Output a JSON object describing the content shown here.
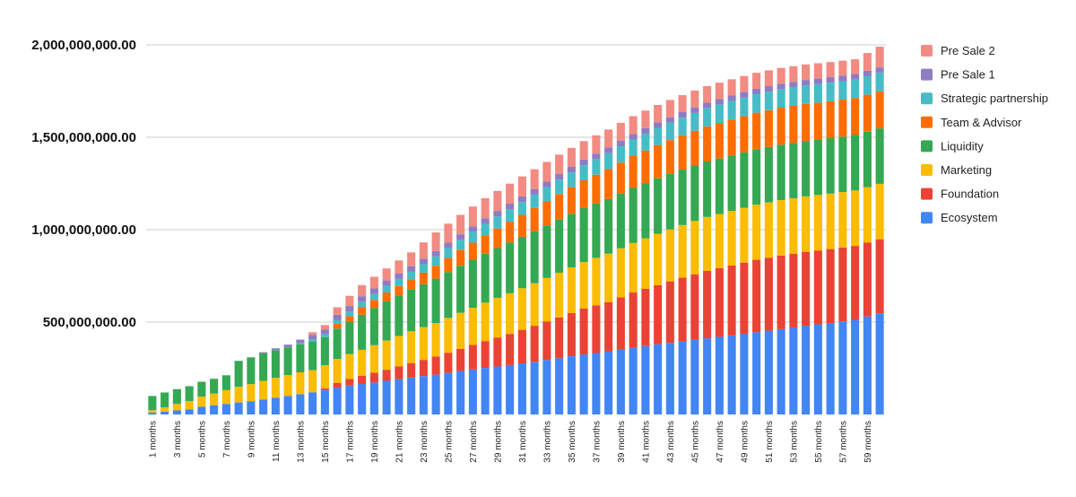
{
  "chart_data": {
    "type": "stacked-bar",
    "title": "",
    "xlabel": "",
    "ylabel": "",
    "ylim": [
      0,
      2000000000
    ],
    "yticks": [
      500000000,
      1000000000,
      1500000000,
      2000000000
    ],
    "ytick_labels": [
      "500,000,000.00",
      "1,000,000,000.00",
      "1,500,000,000.00",
      "2,000,000,000.00"
    ],
    "x_count": 60,
    "x_label_suffix": " months",
    "x_label_every": 2,
    "series": [
      {
        "name": "Ecosystem",
        "color": "#4285f4",
        "anchors": [
          [
            1,
            10000000
          ],
          [
            2,
            15000000
          ],
          [
            3,
            22000000
          ],
          [
            4,
            28000000
          ],
          [
            5,
            42000000
          ],
          [
            6,
            50000000
          ],
          [
            7,
            57000000
          ],
          [
            8,
            65000000
          ],
          [
            9,
            72000000
          ],
          [
            10,
            80000000
          ],
          [
            11,
            90000000
          ],
          [
            12,
            100000000
          ],
          [
            13,
            110000000
          ],
          [
            14,
            120000000
          ],
          [
            15,
            132000000
          ],
          [
            16,
            145000000
          ],
          [
            17,
            157000000
          ],
          [
            18,
            165000000
          ],
          [
            20,
            182000000
          ],
          [
            22,
            200000000
          ],
          [
            24,
            215000000
          ],
          [
            26,
            235000000
          ],
          [
            28,
            252000000
          ],
          [
            30,
            268000000
          ],
          [
            32,
            285000000
          ],
          [
            34,
            305000000
          ],
          [
            36,
            325000000
          ],
          [
            38,
            340000000
          ],
          [
            40,
            360000000
          ],
          [
            42,
            380000000
          ],
          [
            44,
            395000000
          ],
          [
            46,
            412000000
          ],
          [
            48,
            428000000
          ],
          [
            50,
            445000000
          ],
          [
            52,
            462000000
          ],
          [
            54,
            480000000
          ],
          [
            56,
            495000000
          ],
          [
            58,
            512000000
          ],
          [
            60,
            548000000
          ]
        ]
      },
      {
        "name": "Foundation",
        "color": "#ea4335",
        "anchors": [
          [
            1,
            0
          ],
          [
            14,
            0
          ],
          [
            15,
            10000000
          ],
          [
            16,
            25000000
          ],
          [
            17,
            35000000
          ],
          [
            18,
            45000000
          ],
          [
            20,
            60000000
          ],
          [
            22,
            78000000
          ],
          [
            24,
            98000000
          ],
          [
            26,
            120000000
          ],
          [
            28,
            145000000
          ],
          [
            30,
            168000000
          ],
          [
            32,
            195000000
          ],
          [
            34,
            220000000
          ],
          [
            36,
            248000000
          ],
          [
            38,
            268000000
          ],
          [
            40,
            300000000
          ],
          [
            42,
            320000000
          ],
          [
            44,
            345000000
          ],
          [
            46,
            365000000
          ],
          [
            48,
            378000000
          ],
          [
            50,
            392000000
          ],
          [
            52,
            398000000
          ],
          [
            54,
            400000000
          ],
          [
            56,
            400000000
          ],
          [
            58,
            400000000
          ],
          [
            60,
            400000000
          ]
        ]
      },
      {
        "name": "Marketing",
        "color": "#fbbc04",
        "anchors": [
          [
            1,
            13000000
          ],
          [
            2,
            24000000
          ],
          [
            3,
            35000000
          ],
          [
            4,
            45000000
          ],
          [
            5,
            55000000
          ],
          [
            6,
            63000000
          ],
          [
            7,
            75000000
          ],
          [
            8,
            85000000
          ],
          [
            9,
            92000000
          ],
          [
            10,
            102000000
          ],
          [
            11,
            108000000
          ],
          [
            12,
            113000000
          ],
          [
            13,
            118000000
          ],
          [
            14,
            120000000
          ],
          [
            15,
            125000000
          ],
          [
            16,
            130000000
          ],
          [
            17,
            135000000
          ],
          [
            18,
            140000000
          ],
          [
            20,
            158000000
          ],
          [
            22,
            172000000
          ],
          [
            24,
            182000000
          ],
          [
            26,
            195000000
          ],
          [
            28,
            208000000
          ],
          [
            30,
            220000000
          ],
          [
            32,
            230000000
          ],
          [
            34,
            242000000
          ],
          [
            36,
            252000000
          ],
          [
            38,
            262000000
          ],
          [
            40,
            268000000
          ],
          [
            42,
            278000000
          ],
          [
            44,
            285000000
          ],
          [
            46,
            292000000
          ],
          [
            48,
            295000000
          ],
          [
            50,
            298000000
          ],
          [
            52,
            300000000
          ],
          [
            54,
            300000000
          ],
          [
            56,
            300000000
          ],
          [
            58,
            300000000
          ],
          [
            60,
            300000000
          ]
        ]
      },
      {
        "name": "Liquidity",
        "color": "#34a853",
        "anchors": [
          [
            1,
            77000000
          ],
          [
            2,
            80000000
          ],
          [
            3,
            80000000
          ],
          [
            4,
            80000000
          ],
          [
            5,
            80000000
          ],
          [
            6,
            80000000
          ],
          [
            7,
            80000000
          ],
          [
            8,
            140000000
          ],
          [
            9,
            145000000
          ],
          [
            10,
            150000000
          ],
          [
            11,
            150000000
          ],
          [
            12,
            150000000
          ],
          [
            13,
            152000000
          ],
          [
            14,
            155000000
          ],
          [
            15,
            152000000
          ],
          [
            16,
            165000000
          ],
          [
            17,
            175000000
          ],
          [
            18,
            190000000
          ],
          [
            20,
            212000000
          ],
          [
            22,
            225000000
          ],
          [
            24,
            240000000
          ],
          [
            26,
            255000000
          ],
          [
            28,
            265000000
          ],
          [
            30,
            275000000
          ],
          [
            32,
            282000000
          ],
          [
            34,
            288000000
          ],
          [
            36,
            292000000
          ],
          [
            38,
            296000000
          ],
          [
            40,
            298000000
          ],
          [
            42,
            300000000
          ],
          [
            44,
            300000000
          ],
          [
            46,
            300000000
          ],
          [
            48,
            300000000
          ],
          [
            50,
            300000000
          ],
          [
            52,
            300000000
          ],
          [
            54,
            300000000
          ],
          [
            56,
            300000000
          ],
          [
            58,
            300000000
          ],
          [
            60,
            300000000
          ]
        ]
      },
      {
        "name": "Team & Advisor",
        "color": "#ff6d01",
        "anchors": [
          [
            1,
            0
          ],
          [
            15,
            0
          ],
          [
            16,
            25000000
          ],
          [
            17,
            30000000
          ],
          [
            18,
            40000000
          ],
          [
            20,
            48000000
          ],
          [
            22,
            55000000
          ],
          [
            24,
            70000000
          ],
          [
            26,
            85000000
          ],
          [
            28,
            100000000
          ],
          [
            30,
            112000000
          ],
          [
            32,
            125000000
          ],
          [
            34,
            138000000
          ],
          [
            36,
            150000000
          ],
          [
            38,
            162000000
          ],
          [
            40,
            172000000
          ],
          [
            42,
            180000000
          ],
          [
            44,
            186000000
          ],
          [
            46,
            190000000
          ],
          [
            48,
            195000000
          ],
          [
            50,
            198000000
          ],
          [
            52,
            200000000
          ],
          [
            54,
            200000000
          ],
          [
            56,
            200000000
          ],
          [
            58,
            200000000
          ],
          [
            60,
            200000000
          ]
        ]
      },
      {
        "name": "Strategic partnership",
        "color": "#46bdc6",
        "anchors": [
          [
            1,
            0
          ],
          [
            12,
            0
          ],
          [
            13,
            5000000
          ],
          [
            14,
            10000000
          ],
          [
            15,
            15000000
          ],
          [
            16,
            20000000
          ],
          [
            17,
            25000000
          ],
          [
            18,
            30000000
          ],
          [
            20,
            35000000
          ],
          [
            22,
            42000000
          ],
          [
            24,
            50000000
          ],
          [
            26,
            55000000
          ],
          [
            28,
            62000000
          ],
          [
            30,
            68000000
          ],
          [
            32,
            72000000
          ],
          [
            34,
            78000000
          ],
          [
            36,
            82000000
          ],
          [
            38,
            86000000
          ],
          [
            40,
            90000000
          ],
          [
            42,
            93000000
          ],
          [
            44,
            95000000
          ],
          [
            46,
            98000000
          ],
          [
            48,
            100000000
          ],
          [
            50,
            100000000
          ],
          [
            52,
            100000000
          ],
          [
            54,
            100000000
          ],
          [
            56,
            100000000
          ],
          [
            58,
            100000000
          ],
          [
            60,
            100000000
          ]
        ]
      },
      {
        "name": "Pre Sale 1",
        "color": "#8e7cc3",
        "anchors": [
          [
            1,
            0
          ],
          [
            9,
            0
          ],
          [
            10,
            5000000
          ],
          [
            11,
            10000000
          ],
          [
            12,
            15000000
          ],
          [
            13,
            20000000
          ],
          [
            14,
            25000000
          ],
          [
            15,
            25000000
          ],
          [
            16,
            30000000
          ],
          [
            17,
            30000000
          ],
          [
            18,
            30000000
          ],
          [
            20,
            30000000
          ],
          [
            22,
            30000000
          ],
          [
            24,
            30000000
          ],
          [
            26,
            30000000
          ],
          [
            28,
            30000000
          ],
          [
            30,
            30000000
          ],
          [
            32,
            30000000
          ],
          [
            34,
            30000000
          ],
          [
            36,
            30000000
          ],
          [
            38,
            30000000
          ],
          [
            40,
            30000000
          ],
          [
            42,
            30000000
          ],
          [
            44,
            30000000
          ],
          [
            46,
            30000000
          ],
          [
            48,
            30000000
          ],
          [
            50,
            30000000
          ],
          [
            52,
            30000000
          ],
          [
            54,
            30000000
          ],
          [
            56,
            30000000
          ],
          [
            58,
            30000000
          ],
          [
            60,
            30000000
          ]
        ]
      },
      {
        "name": "Pre Sale 2",
        "color": "#f28b82",
        "anchors": [
          [
            1,
            0
          ],
          [
            13,
            0
          ],
          [
            14,
            15000000
          ],
          [
            15,
            25000000
          ],
          [
            16,
            40000000
          ],
          [
            17,
            55000000
          ],
          [
            18,
            60000000
          ],
          [
            20,
            65000000
          ],
          [
            22,
            75000000
          ],
          [
            24,
            100000000
          ],
          [
            26,
            105000000
          ],
          [
            28,
            108000000
          ],
          [
            30,
            108000000
          ],
          [
            32,
            108000000
          ],
          [
            34,
            105000000
          ],
          [
            36,
            100000000
          ],
          [
            38,
            98000000
          ],
          [
            40,
            96000000
          ],
          [
            42,
            94000000
          ],
          [
            44,
            92000000
          ],
          [
            46,
            90000000
          ],
          [
            48,
            88000000
          ],
          [
            50,
            86000000
          ],
          [
            52,
            85000000
          ],
          [
            54,
            84000000
          ],
          [
            56,
            82000000
          ],
          [
            58,
            80000000
          ],
          [
            60,
            112000000
          ]
        ]
      }
    ],
    "legend": [
      "Pre Sale 2",
      "Pre Sale 1",
      "Strategic partnership",
      "Team & Advisor",
      "Liquidity",
      "Marketing",
      "Foundation",
      "Ecosystem"
    ],
    "legend_position": "right"
  }
}
